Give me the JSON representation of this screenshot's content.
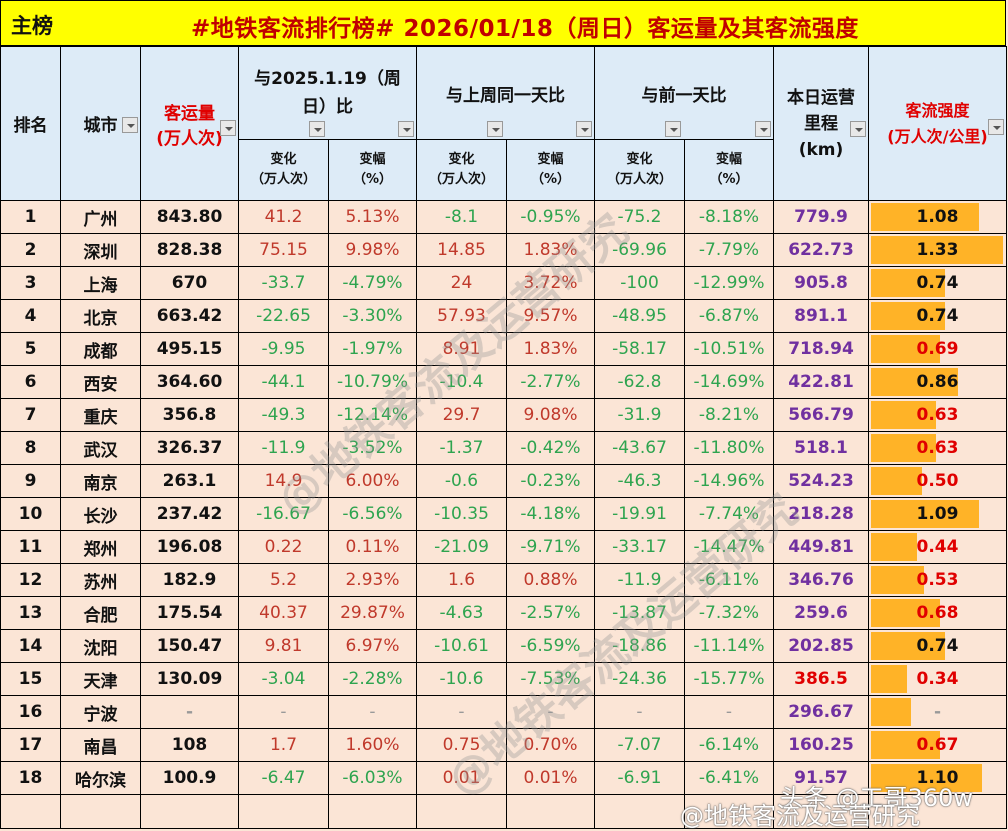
{
  "header": {
    "main_label": "主榜",
    "title": "#地铁客流排行榜# 2026/01/18（周日）客运量及其客流强度"
  },
  "columns": {
    "rank": "排名",
    "city": "城市",
    "volume": "客运量",
    "volume_unit": "(万人次)",
    "yoy_group": "与2025.1.19（周日）比",
    "wow_group": "与上周同一天比",
    "dod_group": "与前一天比",
    "change": "变化",
    "change_unit": "（万人次）",
    "pct": "变幅",
    "pct_unit": "（%）",
    "mileage": "本日运营里程",
    "mileage_unit": "(km)",
    "intensity": "客流强度",
    "intensity_unit": "(万人次/公里)"
  },
  "rows": [
    {
      "rank": "1",
      "city": "广州",
      "volume": "843.80",
      "yoy_chg": "41.2",
      "yoy_pct": "5.13%",
      "wow_chg": "-8.1",
      "wow_pct": "-0.95%",
      "dod_chg": "-75.2",
      "dod_pct": "-8.18%",
      "mileage": "779.9",
      "intensity": "1.08"
    },
    {
      "rank": "2",
      "city": "深圳",
      "volume": "828.38",
      "yoy_chg": "75.15",
      "yoy_pct": "9.98%",
      "wow_chg": "14.85",
      "wow_pct": "1.83%",
      "dod_chg": "-69.96",
      "dod_pct": "-7.79%",
      "mileage": "622.73",
      "intensity": "1.33"
    },
    {
      "rank": "3",
      "city": "上海",
      "volume": "670",
      "yoy_chg": "-33.7",
      "yoy_pct": "-4.79%",
      "wow_chg": "24",
      "wow_pct": "3.72%",
      "dod_chg": "-100",
      "dod_pct": "-12.99%",
      "mileage": "905.8",
      "intensity": "0.74"
    },
    {
      "rank": "4",
      "city": "北京",
      "volume": "663.42",
      "yoy_chg": "-22.65",
      "yoy_pct": "-3.30%",
      "wow_chg": "57.93",
      "wow_pct": "9.57%",
      "dod_chg": "-48.95",
      "dod_pct": "-6.87%",
      "mileage": "891.1",
      "intensity": "0.74"
    },
    {
      "rank": "5",
      "city": "成都",
      "volume": "495.15",
      "yoy_chg": "-9.95",
      "yoy_pct": "-1.97%",
      "wow_chg": "8.91",
      "wow_pct": "1.83%",
      "dod_chg": "-58.17",
      "dod_pct": "-10.51%",
      "mileage": "718.94",
      "intensity": "0.69"
    },
    {
      "rank": "6",
      "city": "西安",
      "volume": "364.60",
      "yoy_chg": "-44.1",
      "yoy_pct": "-10.79%",
      "wow_chg": "-10.4",
      "wow_pct": "-2.77%",
      "dod_chg": "-62.8",
      "dod_pct": "-14.69%",
      "mileage": "422.81",
      "intensity": "0.86"
    },
    {
      "rank": "7",
      "city": "重庆",
      "volume": "356.8",
      "yoy_chg": "-49.3",
      "yoy_pct": "-12.14%",
      "wow_chg": "29.7",
      "wow_pct": "9.08%",
      "dod_chg": "-31.9",
      "dod_pct": "-8.21%",
      "mileage": "566.79",
      "intensity": "0.63"
    },
    {
      "rank": "8",
      "city": "武汉",
      "volume": "326.37",
      "yoy_chg": "-11.9",
      "yoy_pct": "-3.52%",
      "wow_chg": "-1.37",
      "wow_pct": "-0.42%",
      "dod_chg": "-43.67",
      "dod_pct": "-11.80%",
      "mileage": "518.1",
      "intensity": "0.63"
    },
    {
      "rank": "9",
      "city": "南京",
      "volume": "263.1",
      "yoy_chg": "14.9",
      "yoy_pct": "6.00%",
      "wow_chg": "-0.6",
      "wow_pct": "-0.23%",
      "dod_chg": "-46.3",
      "dod_pct": "-14.96%",
      "mileage": "524.23",
      "intensity": "0.50"
    },
    {
      "rank": "10",
      "city": "长沙",
      "volume": "237.42",
      "yoy_chg": "-16.67",
      "yoy_pct": "-6.56%",
      "wow_chg": "-10.35",
      "wow_pct": "-4.18%",
      "dod_chg": "-19.91",
      "dod_pct": "-7.74%",
      "mileage": "218.28",
      "intensity": "1.09"
    },
    {
      "rank": "11",
      "city": "郑州",
      "volume": "196.08",
      "yoy_chg": "0.22",
      "yoy_pct": "0.11%",
      "wow_chg": "-21.09",
      "wow_pct": "-9.71%",
      "dod_chg": "-33.17",
      "dod_pct": "-14.47%",
      "mileage": "449.81",
      "intensity": "0.44"
    },
    {
      "rank": "12",
      "city": "苏州",
      "volume": "182.9",
      "yoy_chg": "5.2",
      "yoy_pct": "2.93%",
      "wow_chg": "1.6",
      "wow_pct": "0.88%",
      "dod_chg": "-11.9",
      "dod_pct": "-6.11%",
      "mileage": "346.76",
      "intensity": "0.53"
    },
    {
      "rank": "13",
      "city": "合肥",
      "volume": "175.54",
      "yoy_chg": "40.37",
      "yoy_pct": "29.87%",
      "wow_chg": "-4.63",
      "wow_pct": "-2.57%",
      "dod_chg": "-13.87",
      "dod_pct": "-7.32%",
      "mileage": "259.6",
      "intensity": "0.68"
    },
    {
      "rank": "14",
      "city": "沈阳",
      "volume": "150.47",
      "yoy_chg": "9.81",
      "yoy_pct": "6.97%",
      "wow_chg": "-10.61",
      "wow_pct": "-6.59%",
      "dod_chg": "-18.86",
      "dod_pct": "-11.14%",
      "mileage": "202.85",
      "intensity": "0.74"
    },
    {
      "rank": "15",
      "city": "天津",
      "volume": "130.09",
      "yoy_chg": "-3.04",
      "yoy_pct": "-2.28%",
      "wow_chg": "-10.6",
      "wow_pct": "-7.53%",
      "dod_chg": "-24.36",
      "dod_pct": "-15.77%",
      "mileage": "386.5",
      "intensity": "0.34"
    },
    {
      "rank": "16",
      "city": "宁波",
      "volume": "-",
      "yoy_chg": "-",
      "yoy_pct": "-",
      "wow_chg": "-",
      "wow_pct": "-",
      "dod_chg": "-",
      "dod_pct": "-",
      "mileage": "296.67",
      "intensity": "-"
    },
    {
      "rank": "17",
      "city": "南昌",
      "volume": "108",
      "yoy_chg": "1.7",
      "yoy_pct": "1.60%",
      "wow_chg": "0.75",
      "wow_pct": "0.70%",
      "dod_chg": "-7.07",
      "dod_pct": "-6.14%",
      "mileage": "160.25",
      "intensity": "0.67"
    },
    {
      "rank": "18",
      "city": "哈尔滨",
      "volume": "100.9",
      "yoy_chg": "-6.47",
      "yoy_pct": "-6.03%",
      "wow_chg": "0.01",
      "wow_pct": "0.01%",
      "dod_chg": "-6.91",
      "dod_pct": "-6.41%",
      "mileage": "91.57",
      "intensity": "1.10"
    }
  ],
  "bar_widths_pct": [
    82,
    100,
    56,
    56,
    52,
    66,
    49,
    49,
    39,
    82,
    35,
    40,
    52,
    56,
    27,
    30,
    52,
    84
  ],
  "intensity_red": [
    false,
    false,
    false,
    false,
    true,
    false,
    true,
    true,
    true,
    false,
    true,
    true,
    true,
    false,
    true,
    false,
    true,
    false
  ],
  "mileage_red": [
    false,
    false,
    false,
    false,
    false,
    false,
    false,
    false,
    false,
    false,
    false,
    false,
    false,
    false,
    true,
    false,
    false,
    false
  ],
  "watermarks": {
    "w1": "@地铁客流及运营研究",
    "footer_toutiao": "头条 @工哥360w",
    "footer_weibo": "@地铁客流及运营研究"
  },
  "colors": {
    "title_bg": "#ffff00",
    "title_text": "#c00000",
    "header_bg": "#ddebf7",
    "body_bg": "#fbe5d6",
    "positive": "#c0392b",
    "negative": "#2ea44f",
    "mileage": "#7030a0",
    "bar": "#ffb327"
  }
}
